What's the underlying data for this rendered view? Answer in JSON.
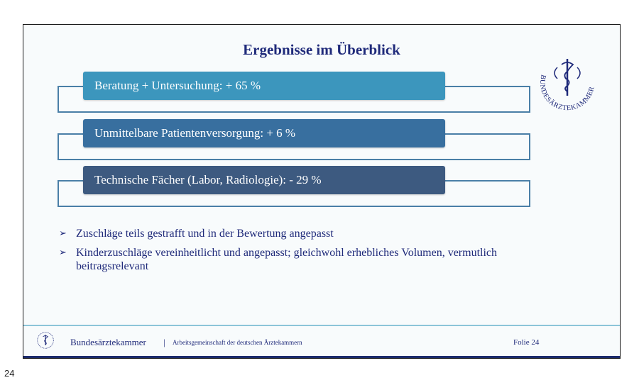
{
  "slide": {
    "title": "Ergebnisse im Überblick",
    "logo_text": "BUNDESÄRZTEKAMMER",
    "boxes": [
      {
        "label": "Beratung + Untersuchung: + 65 %",
        "color": "#3c96bd"
      },
      {
        "label": "Unmittelbare Patientenversorgung: + 6 %",
        "color": "#386f9f"
      },
      {
        "label": "Technische Fächer (Labor, Radiologie): - 29 %",
        "color": "#3d5a80"
      }
    ],
    "bullets": [
      "Zuschläge teils gestrafft und in der Bewertung angepasst",
      "Kinderzuschläge vereinheitlicht und angepasst; gleichwohl erhebliches Volumen, vermutlich beitragsrelevant"
    ]
  },
  "footer": {
    "org": "Bundesärztekammer",
    "separator": "|",
    "subtitle": "Arbeitsgemeinschaft der deutschen Ärztekammern",
    "folie": "Folie 24"
  },
  "page_number": "24"
}
